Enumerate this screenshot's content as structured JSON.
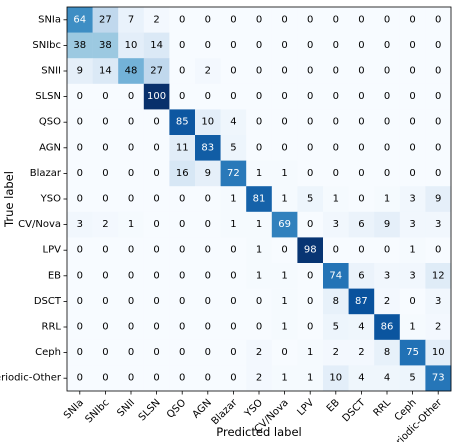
{
  "chart_data": {
    "type": "heatmap",
    "title": "",
    "xlabel": "Predicted label",
    "ylabel": "True label",
    "labels": [
      "SNIa",
      "SNIbc",
      "SNII",
      "SLSN",
      "QSO",
      "AGN",
      "Blazar",
      "YSO",
      "CV/Nova",
      "LPV",
      "EB",
      "DSCT",
      "RRL",
      "Ceph",
      "Periodic-Other"
    ],
    "values": [
      [
        64,
        27,
        7,
        2,
        0,
        0,
        0,
        0,
        0,
        0,
        0,
        0,
        0,
        0,
        0
      ],
      [
        38,
        38,
        10,
        14,
        0,
        0,
        0,
        0,
        0,
        0,
        0,
        0,
        0,
        0,
        0
      ],
      [
        9,
        14,
        48,
        27,
        0,
        2,
        0,
        0,
        0,
        0,
        0,
        0,
        0,
        0,
        0
      ],
      [
        0,
        0,
        0,
        100,
        0,
        0,
        0,
        0,
        0,
        0,
        0,
        0,
        0,
        0,
        0
      ],
      [
        0,
        0,
        0,
        0,
        85,
        10,
        4,
        0,
        0,
        0,
        0,
        0,
        0,
        0,
        0
      ],
      [
        0,
        0,
        0,
        0,
        11,
        83,
        5,
        0,
        0,
        0,
        0,
        0,
        0,
        0,
        0
      ],
      [
        0,
        0,
        0,
        0,
        16,
        9,
        72,
        1,
        1,
        0,
        0,
        0,
        0,
        0,
        0
      ],
      [
        0,
        0,
        0,
        0,
        0,
        0,
        1,
        81,
        1,
        5,
        1,
        0,
        1,
        3,
        9
      ],
      [
        3,
        2,
        1,
        0,
        0,
        0,
        1,
        1,
        69,
        0,
        3,
        6,
        9,
        3,
        3
      ],
      [
        0,
        0,
        0,
        0,
        0,
        0,
        0,
        1,
        0,
        98,
        0,
        0,
        0,
        1,
        0
      ],
      [
        0,
        0,
        0,
        0,
        0,
        0,
        0,
        1,
        1,
        0,
        74,
        6,
        3,
        3,
        12
      ],
      [
        0,
        0,
        0,
        0,
        0,
        0,
        0,
        0,
        1,
        0,
        8,
        87,
        2,
        0,
        3
      ],
      [
        0,
        0,
        0,
        0,
        0,
        0,
        0,
        0,
        1,
        0,
        5,
        4,
        86,
        1,
        2
      ],
      [
        0,
        0,
        0,
        0,
        0,
        0,
        0,
        2,
        0,
        1,
        2,
        2,
        8,
        75,
        10
      ],
      [
        0,
        0,
        0,
        0,
        0,
        0,
        0,
        2,
        1,
        1,
        10,
        4,
        4,
        5,
        73
      ]
    ],
    "value_range": [
      0,
      100
    ],
    "colormap": "Blues",
    "grid": false
  }
}
